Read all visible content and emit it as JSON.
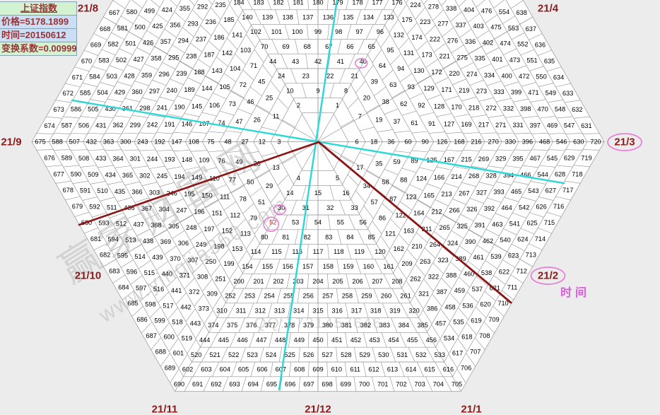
{
  "panel": {
    "title": "上证指数",
    "price": "价格=5178.1899",
    "time": "时间=20150612",
    "coefficient": "变换系数=0.00999"
  },
  "chart_data": {
    "type": "gann-hexagon-spiral",
    "number_range": [
      1,
      720
    ],
    "rings": 15,
    "spiral_direction": "counterclockwise",
    "east_axis_ring_end_numbers": [
      6,
      18,
      36,
      60,
      90,
      126,
      168,
      216,
      270,
      330,
      396,
      468,
      546,
      630,
      720
    ],
    "west_axis_numbers": [
      3,
      12,
      27,
      48,
      75,
      108,
      147,
      192,
      243,
      300,
      363,
      432,
      507,
      588,
      675
    ],
    "bottom_edge_numbers": [
      690,
      705
    ],
    "month_labels": [
      {
        "label": "21/8",
        "dir": "WNW",
        "oval": false
      },
      {
        "label": "21/4",
        "dir": "ENE",
        "oval": false
      },
      {
        "label": "21/9",
        "dir": "W",
        "oval": false
      },
      {
        "label": "21/3",
        "dir": "E",
        "oval": true
      },
      {
        "label": "21/10",
        "dir": "WSW",
        "oval": false
      },
      {
        "label": "21/2",
        "dir": "ESE",
        "oval": true
      },
      {
        "label": "21/11",
        "dir": "SW",
        "oval": false
      },
      {
        "label": "21/12",
        "dir": "S",
        "oval": false
      },
      {
        "label": "21/1",
        "dir": "SE",
        "oval": false
      }
    ],
    "circled_numbers": [
      40,
      30,
      52
    ],
    "red_numbers": [
      52
    ],
    "trend_lines": [
      {
        "name": "cyan-line-vertical",
        "color": "#2BD8D8",
        "width": 2.4,
        "from": [
          477,
          0
        ],
        "to": [
          395,
          551
        ]
      },
      {
        "name": "cyan-line-horizontal",
        "color": "#2BD8D8",
        "width": 2.4,
        "from": [
          102,
          142
        ],
        "to": [
          798,
          259
        ]
      },
      {
        "name": "red-line-down-left",
        "color": "#8B1414",
        "width": 2.6,
        "from": [
          451,
          201
        ],
        "to": [
          112,
          318
        ]
      },
      {
        "name": "red-line-down-right",
        "color": "#8B1414",
        "width": 2.8,
        "from": [
          451,
          201
        ],
        "to": [
          723,
          428
        ]
      }
    ],
    "time_axis_label": "时间",
    "watermark": {
      "site_name": "赢家财富网",
      "url": "www.yingjia360.com",
      "qq": "QQ:1731457646"
    },
    "colors": {
      "background": "#ececec",
      "hexagon_fill": "#ffffff",
      "grid": "#8f8f8f",
      "numbers": "#000000",
      "highlight_number": "#cc2020",
      "month_label": "#8B1A1A",
      "oval": "#e77fd4",
      "time_label": "#d95fd9",
      "cyan_line": "#2BD8D8",
      "red_line": "#8B1414"
    }
  }
}
